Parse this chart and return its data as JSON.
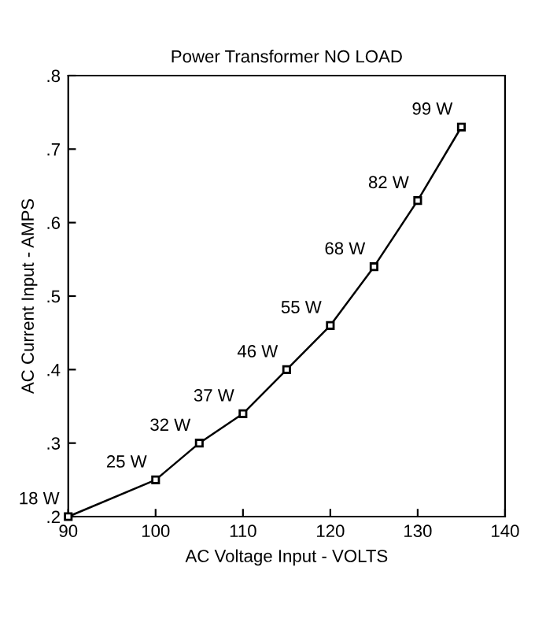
{
  "chart_data": {
    "type": "line",
    "title": "Power Transformer NO LOAD",
    "xlabel": "AC Voltage Input - VOLTS",
    "ylabel": "AC Current Input - AMPS",
    "x": [
      90,
      100,
      105,
      110,
      115,
      120,
      125,
      130,
      135
    ],
    "series": [
      {
        "color": "#000000",
        "values": [
          0.2,
          0.25,
          0.3,
          0.34,
          0.4,
          0.46,
          0.54,
          0.63,
          0.73
        ]
      }
    ],
    "marker": "square",
    "line_style": "solid",
    "grid": false,
    "legend": false,
    "xlim": [
      90,
      140
    ],
    "xticks": [
      90,
      100,
      110,
      120,
      130,
      140
    ],
    "ylim": [
      0.2,
      0.8
    ],
    "yticks": [
      {
        "value": 0.2,
        "label": ".2"
      },
      {
        "value": 0.3,
        "label": ".3"
      },
      {
        "value": 0.4,
        "label": ".4"
      },
      {
        "value": 0.5,
        "label": ".5"
      },
      {
        "value": 0.6,
        "label": ".6"
      },
      {
        "value": 0.7,
        "label": ".7"
      },
      {
        "value": 0.8,
        "label": ".8"
      }
    ],
    "annotations": [
      {
        "text": "18 W",
        "x": 90,
        "y": 0.2
      },
      {
        "text": "25 W",
        "x": 100,
        "y": 0.25
      },
      {
        "text": "32 W",
        "x": 105,
        "y": 0.3
      },
      {
        "text": "37 W",
        "x": 110,
        "y": 0.34
      },
      {
        "text": "46 W",
        "x": 115,
        "y": 0.4
      },
      {
        "text": "55 W",
        "x": 120,
        "y": 0.46
      },
      {
        "text": "68 W",
        "x": 125,
        "y": 0.54
      },
      {
        "text": "82 W",
        "x": 130,
        "y": 0.63
      },
      {
        "text": "99 W",
        "x": 135,
        "y": 0.73
      }
    ]
  }
}
